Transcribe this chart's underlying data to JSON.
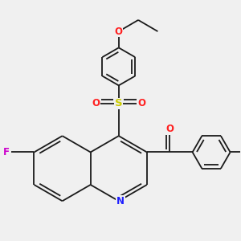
{
  "bg_color": "#f0f0f0",
  "bond_color": "#1a1a1a",
  "bond_width": 1.3,
  "atom_colors": {
    "N": "#2020ff",
    "O": "#ff2020",
    "F": "#cc00cc",
    "S": "#cccc00",
    "C": "#1a1a1a"
  },
  "font_size": 8.5,
  "bl": 0.38
}
